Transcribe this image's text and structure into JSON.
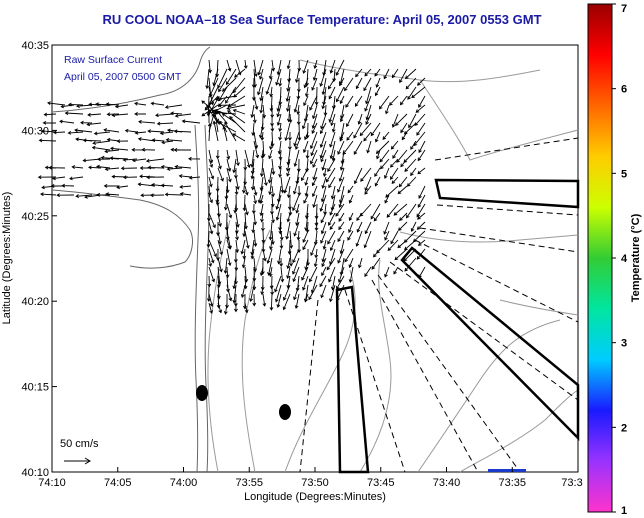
{
  "chart_data": {
    "type": "map",
    "title": "RU COOL  NOAA–18  Sea Surface Temperature:  April 05, 2007 0553 GMT",
    "xlabel": "Longitude (Degrees:Minutes)",
    "ylabel": "Latitude (Degrees:Minutes)",
    "x_ticks": [
      "74:10",
      "74:05",
      "74:00",
      "73:55",
      "73:50",
      "73:45",
      "73:40",
      "73:35",
      "73:3"
    ],
    "y_ticks": [
      "40:35",
      "40:30",
      "40:25",
      "40:20",
      "40:15",
      "40:10"
    ],
    "legend_lines": [
      "Raw Surface Current",
      "April 05, 2007 0500 GMT"
    ],
    "scale_label": "50 cm/s",
    "colorbar": {
      "label": "Temperature (°C)",
      "ticks": [
        "1",
        "2",
        "3",
        "4",
        "5",
        "6",
        "7"
      ],
      "range": [
        1,
        7
      ],
      "colors": [
        "#ff33cc",
        "#9933ff",
        "#1a1aff",
        "#00ccff",
        "#00e6a0",
        "#33cc33",
        "#ccff00",
        "#ffcc00",
        "#ff6600",
        "#ff0000",
        "#990000"
      ]
    }
  }
}
